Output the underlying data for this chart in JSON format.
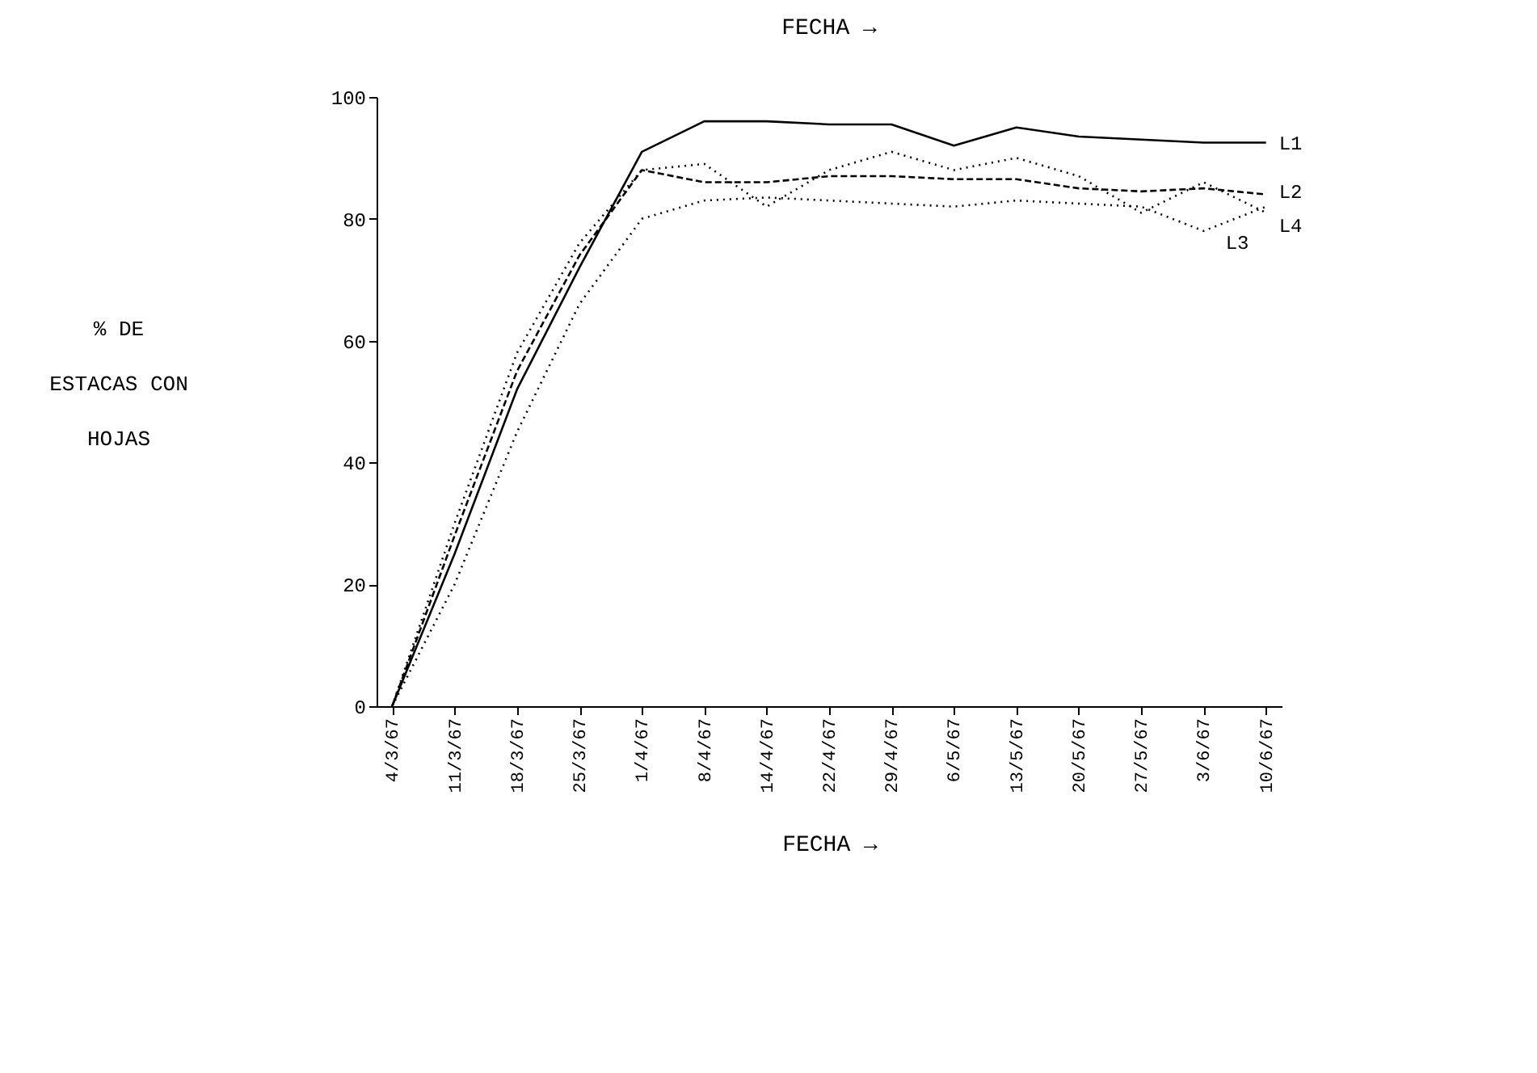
{
  "chart_data": {
    "type": "line",
    "title": "FECHA →",
    "xlabel": "FECHA →",
    "ylabel": "% DE\nESTACAS CON\nHOJAS",
    "categories": [
      "4/3/67",
      "11/3/67",
      "18/3/67",
      "25/3/67",
      "1/4/67",
      "8/4/67",
      "14/4/67",
      "22/4/67",
      "29/4/67",
      "6/5/67",
      "13/5/67",
      "20/5/67",
      "27/5/67",
      "3/6/67",
      "10/6/67"
    ],
    "series": [
      {
        "name": "L1",
        "color": "#000000",
        "line_style": "solid",
        "values": [
          0,
          25,
          52,
          72,
          91,
          96,
          96,
          95.5,
          95.5,
          92,
          95,
          93.5,
          93,
          92.5,
          92.5
        ]
      },
      {
        "name": "L2",
        "color": "#000000",
        "line_style": "dashed",
        "values": [
          0,
          28,
          55,
          74,
          88,
          86,
          86,
          87,
          87,
          86.5,
          86.5,
          85,
          84.5,
          85,
          84
        ]
      },
      {
        "name": "L4",
        "color": "#000000",
        "line_style": "dotted",
        "values": [
          0,
          30,
          58,
          76,
          88,
          89,
          82,
          88,
          91,
          88,
          90,
          87,
          81,
          86,
          81
        ]
      },
      {
        "name": "L3",
        "color": "#000000",
        "line_style": "dotted",
        "values": [
          0,
          20,
          45,
          66,
          80,
          83,
          83.5,
          83,
          82.5,
          82,
          83,
          82.5,
          82,
          78,
          82
        ]
      }
    ],
    "ylim": [
      0,
      100
    ],
    "yticks": [
      0,
      20,
      40,
      60,
      80,
      100
    ],
    "grid": false,
    "marker": "none"
  }
}
